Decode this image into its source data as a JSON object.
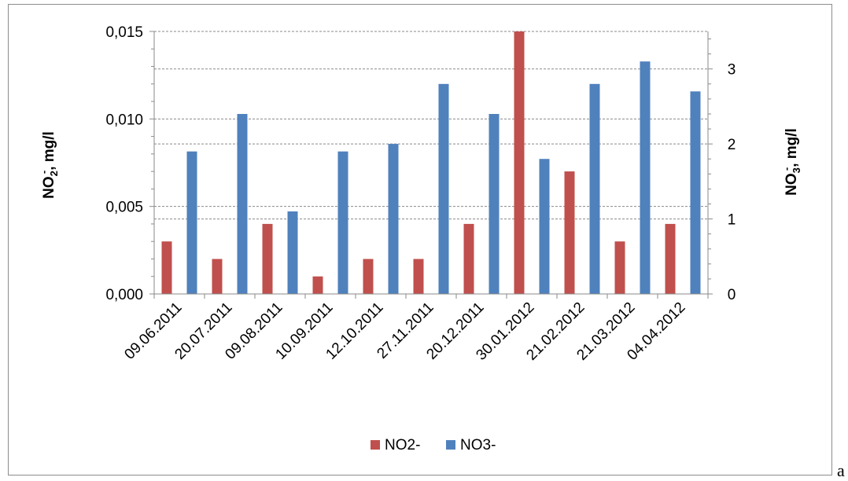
{
  "chart_data": {
    "type": "bar",
    "categories": [
      "09.06.2011",
      "20.07.2011",
      "09.08.2011",
      "10.09.2011",
      "12.10.2011",
      "27.11.2011",
      "20.12.2011",
      "30.01.2012",
      "21.02.2012",
      "21.03.2012",
      "04.04.2012"
    ],
    "series": [
      {
        "name": "NO2-",
        "axis": "left",
        "color": "#c0504d",
        "values": [
          0.003,
          0.002,
          0.004,
          0.001,
          0.002,
          0.002,
          0.004,
          0.015,
          0.007,
          0.003,
          0.004
        ]
      },
      {
        "name": "NO3-",
        "axis": "right",
        "color": "#4f81bd",
        "values": [
          1.9,
          2.4,
          1.1,
          1.9,
          2.0,
          2.8,
          2.4,
          1.8,
          2.8,
          3.1,
          2.7
        ]
      }
    ],
    "ylabel_left": {
      "main": "NO",
      "sub": "2",
      "sup": "-",
      "rest": ", mg/l"
    },
    "ylabel_right": {
      "main": "NO",
      "sub": "3",
      "sup": "-",
      "rest": ", mg/l"
    },
    "yticks_left": [
      "0,000",
      "0,005",
      "0,010",
      "0,015"
    ],
    "yticks_right": [
      "0",
      "1",
      "2",
      "3"
    ],
    "ylim_left": [
      0,
      0.015
    ],
    "ylim_right": [
      0,
      3.5
    ],
    "grid": true,
    "legend_position": "bottom-center"
  },
  "trailing_text": "a"
}
